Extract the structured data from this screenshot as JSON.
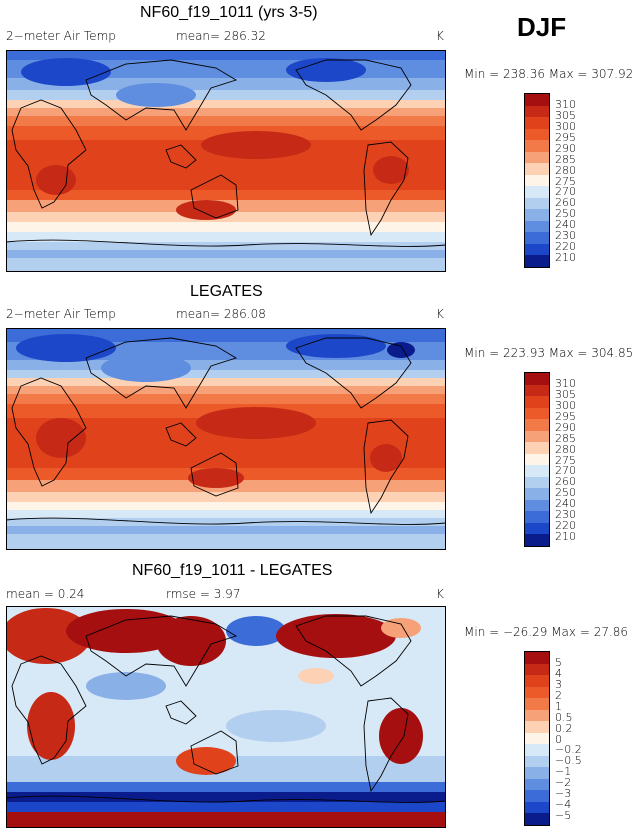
{
  "season": "DJF",
  "panels": [
    {
      "title": "NF60_f19_1011 (yrs 3-5)",
      "left_text": "2−meter Air Temp",
      "center_text": "mean= 286.32",
      "unit": "K",
      "minmax": "Min = 238.36 Max = 307.92",
      "levels": [
        "310",
        "305",
        "300",
        "295",
        "290",
        "285",
        "280",
        "275",
        "270",
        "260",
        "250",
        "240",
        "230",
        "220",
        "210"
      ],
      "colors": [
        "#a50f0f",
        "#c62a16",
        "#e0431c",
        "#ec5a2a",
        "#f27a48",
        "#f6a177",
        "#fcd1b4",
        "#fff4e8",
        "#d7e8f7",
        "#b3cff0",
        "#8ab0e8",
        "#5f8ee0",
        "#3b6cd8",
        "#1c47c8",
        "#0a1c8c"
      ]
    },
    {
      "title": "LEGATES",
      "left_text": "2−meter Air Temp",
      "center_text": "mean= 286.08",
      "unit": "K",
      "minmax": "Min = 223.93 Max = 304.85",
      "levels": [
        "310",
        "305",
        "300",
        "295",
        "290",
        "285",
        "280",
        "275",
        "270",
        "260",
        "250",
        "240",
        "230",
        "220",
        "210"
      ],
      "colors": [
        "#a50f0f",
        "#c62a16",
        "#e0431c",
        "#ec5a2a",
        "#f27a48",
        "#f6a177",
        "#fcd1b4",
        "#fff4e8",
        "#d7e8f7",
        "#b3cff0",
        "#8ab0e8",
        "#5f8ee0",
        "#3b6cd8",
        "#1c47c8",
        "#0a1c8c"
      ]
    },
    {
      "title": "NF60_f19_1011 - LEGATES",
      "left_text": "mean =     0.24",
      "center_text": "rmse =     3.97",
      "unit": "K",
      "minmax": "Min = −26.29 Max =  27.86",
      "levels": [
        "5",
        "4",
        "3",
        "2",
        "1",
        "0.5",
        "0.2",
        "0",
        "−0.2",
        "−0.5",
        "−1",
        "−2",
        "−3",
        "−4",
        "−5"
      ],
      "colors": [
        "#a50f0f",
        "#c62a16",
        "#e0431c",
        "#ec5a2a",
        "#f27a48",
        "#f6a177",
        "#fcd1b4",
        "#fff4e8",
        "#d7e8f7",
        "#b3cff0",
        "#8ab0e8",
        "#5f8ee0",
        "#3b6cd8",
        "#1c47c8",
        "#0a1c8c"
      ]
    }
  ]
}
